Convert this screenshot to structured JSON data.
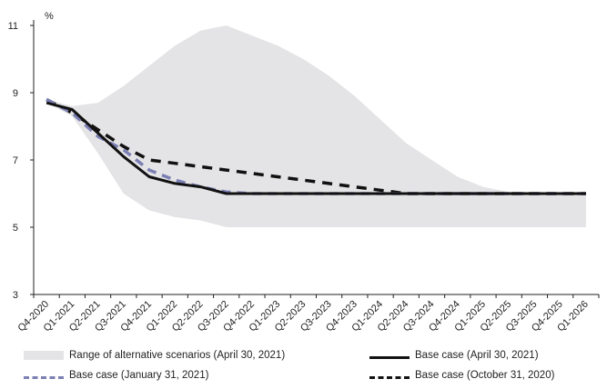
{
  "chart_data": {
    "type": "line",
    "unit_label": "%",
    "ylim": [
      3,
      11
    ],
    "yticks": [
      3,
      5,
      7,
      9,
      11
    ],
    "categories": [
      "Q4-2020",
      "Q1-2021",
      "Q2-2021",
      "Q3-2021",
      "Q4-2021",
      "Q1-2022",
      "Q2-2022",
      "Q3-2022",
      "Q4-2022",
      "Q1-2023",
      "Q2-2023",
      "Q3-2023",
      "Q4-2023",
      "Q1-2024",
      "Q2-2024",
      "Q3-2024",
      "Q4-2024",
      "Q1-2025",
      "Q2-2025",
      "Q3-2025",
      "Q4-2025",
      "Q1-2026"
    ],
    "band": {
      "name": "Range of alternative scenarios (April 30, 2021)",
      "color": "#e4e4e6",
      "upper": [
        8.8,
        8.6,
        8.7,
        9.2,
        9.8,
        10.4,
        10.85,
        11.0,
        10.7,
        10.4,
        10.0,
        9.5,
        8.9,
        8.2,
        7.5,
        7.0,
        6.5,
        6.2,
        6.05,
        6.0,
        6.0,
        6.0
      ],
      "lower": [
        8.7,
        8.3,
        7.2,
        6.0,
        5.5,
        5.3,
        5.2,
        5.0,
        5.0,
        5.0,
        5.0,
        5.0,
        5.0,
        5.0,
        5.0,
        5.0,
        5.0,
        5.0,
        5.0,
        5.0,
        5.0,
        5.0
      ]
    },
    "series": [
      {
        "name": "Base case (April 30, 2021)",
        "color": "#111111",
        "style": "solid",
        "values": [
          8.7,
          8.5,
          7.8,
          7.1,
          6.5,
          6.3,
          6.2,
          6.0,
          6.0,
          6.0,
          6.0,
          6.0,
          6.0,
          6.0,
          6.0,
          6.0,
          6.0,
          6.0,
          6.0,
          6.0,
          6.0,
          6.0
        ]
      },
      {
        "name": "Base case (January 31, 2021)",
        "color": "#7b7fb3",
        "style": "dashed",
        "values": [
          8.8,
          8.4,
          7.7,
          7.3,
          6.7,
          6.4,
          6.2,
          6.05,
          6.0,
          6.0,
          6.0,
          6.0,
          6.0,
          6.0,
          6.0,
          6.0,
          6.0,
          6.0,
          6.0,
          6.0,
          6.0,
          6.0
        ]
      },
      {
        "name": "Base case (October 31, 2020)",
        "color": "#111111",
        "style": "dashed",
        "values": [
          8.8,
          8.4,
          7.9,
          7.4,
          7.0,
          6.9,
          6.8,
          6.7,
          6.6,
          6.5,
          6.4,
          6.3,
          6.2,
          6.1,
          6.0,
          6.0,
          6.0,
          6.0,
          6.0,
          6.0,
          6.0,
          6.0
        ]
      }
    ],
    "legend": {
      "band_label": "Range of alternative scenarios (April 30, 2021)",
      "base_apr_label": "Base case (April 30, 2021)",
      "base_jan_label": "Base case (January 31, 2021)",
      "base_oct_label": "Base case (October 31, 2020)"
    }
  }
}
